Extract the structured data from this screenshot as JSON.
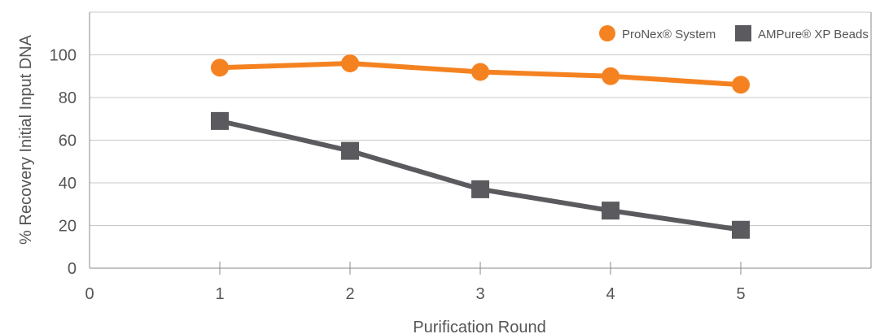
{
  "chart_data": {
    "type": "line",
    "title": "",
    "xlabel": "Purification Round",
    "ylabel": "% Recovery Initial Input DNA",
    "xlim": [
      0,
      6
    ],
    "ylim": [
      0,
      120
    ],
    "x_ticks": [
      "0",
      "1",
      "2",
      "3",
      "4",
      "5"
    ],
    "y_ticks": [
      "0",
      "20",
      "40",
      "60",
      "80",
      "100"
    ],
    "grid": "horizontal",
    "legend_position": "top-right",
    "x": [
      1,
      2,
      3,
      4,
      5
    ],
    "series": [
      {
        "name": "ProNex® System",
        "marker": "circle",
        "color": "#f58220",
        "values": [
          94,
          96,
          92,
          90,
          86
        ]
      },
      {
        "name": "AMPure® XP Beads",
        "marker": "square",
        "color": "#5b5b5f",
        "values": [
          69,
          55,
          37,
          27,
          18
        ]
      }
    ]
  },
  "colors": {
    "grid": "#c8c8c8",
    "axis": "#8a8a8a",
    "text": "#555555"
  }
}
